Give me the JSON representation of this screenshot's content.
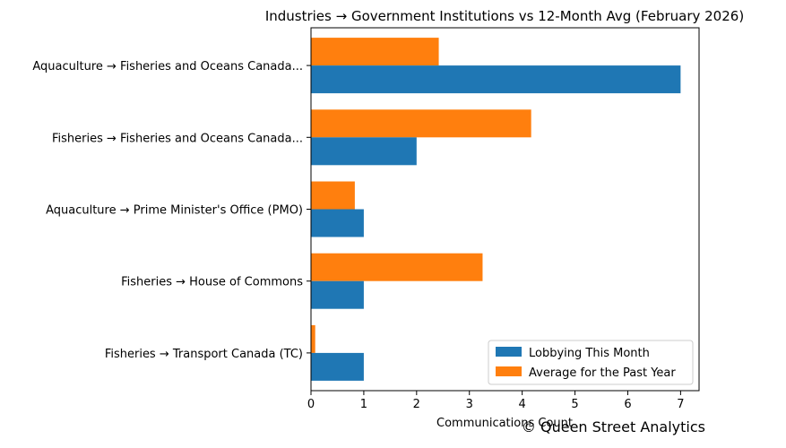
{
  "chart_data": {
    "type": "bar",
    "orientation": "horizontal",
    "title": "Industries → Government Institutions vs 12-Month Avg (February 2026)",
    "xlabel": "Communications Count",
    "ylabel": "",
    "categories": [
      "Aquaculture → Fisheries and Oceans Canada...",
      "Fisheries → Fisheries and Oceans Canada...",
      "Aquaculture → Prime Minister's Office (PMO)",
      "Fisheries → House of Commons",
      "Fisheries → Transport Canada (TC)"
    ],
    "series": [
      {
        "name": "Lobbying This Month",
        "color": "#1f77b4",
        "values": [
          7,
          2,
          1,
          1,
          1
        ]
      },
      {
        "name": "Average for the Past Year",
        "color": "#ff7f0e",
        "values": [
          2.42,
          4.17,
          0.83,
          3.25,
          0.08
        ]
      }
    ],
    "xlim": [
      0,
      7.35
    ],
    "xticks": [
      "0",
      "1",
      "2",
      "3",
      "4",
      "5",
      "6",
      "7"
    ],
    "grid": false,
    "legend_position": "lower-right"
  },
  "watermark": "© Queen Street Analytics"
}
